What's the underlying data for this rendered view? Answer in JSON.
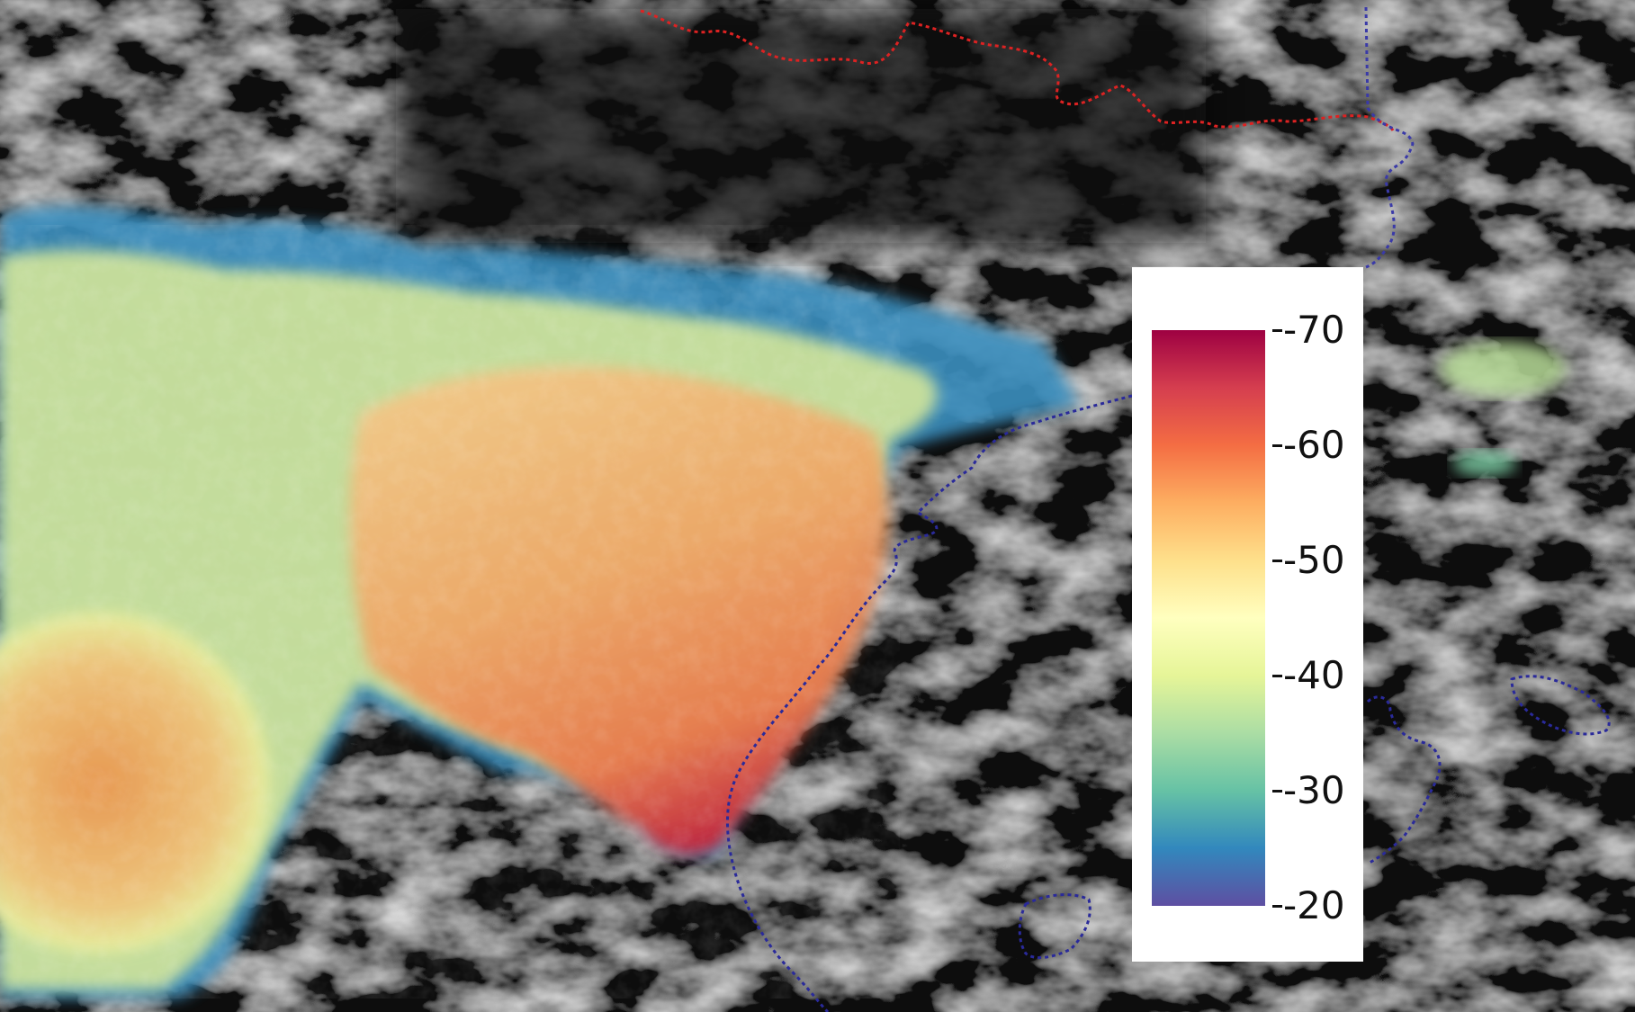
{
  "map": {
    "overlay_palette": [
      "#5e4fa2",
      "#3288bd",
      "#66c2a5",
      "#abdda4",
      "#e6f598",
      "#ffffbf",
      "#fee08b",
      "#fdae61",
      "#f46d43",
      "#d53e4f",
      "#9e0142"
    ],
    "background_color": "#0c0c0c",
    "border_colors": {
      "international": "#dd2222",
      "regional": "#2a2a9a"
    }
  },
  "colorbar": {
    "min": -20,
    "max": -70,
    "stops": [
      "#5e4fa2",
      "#3288bd",
      "#66c2a5",
      "#abdda4",
      "#e6f598",
      "#ffffbf",
      "#fee08b",
      "#fdae61",
      "#f46d43",
      "#d53e4f",
      "#9e0142"
    ],
    "ticks": [
      {
        "value": -70,
        "label": "-70"
      },
      {
        "value": -60,
        "label": "-60"
      },
      {
        "value": -50,
        "label": "-50"
      },
      {
        "value": -40,
        "label": "-40"
      },
      {
        "value": -30,
        "label": "-30"
      },
      {
        "value": -20,
        "label": "-20"
      }
    ]
  }
}
